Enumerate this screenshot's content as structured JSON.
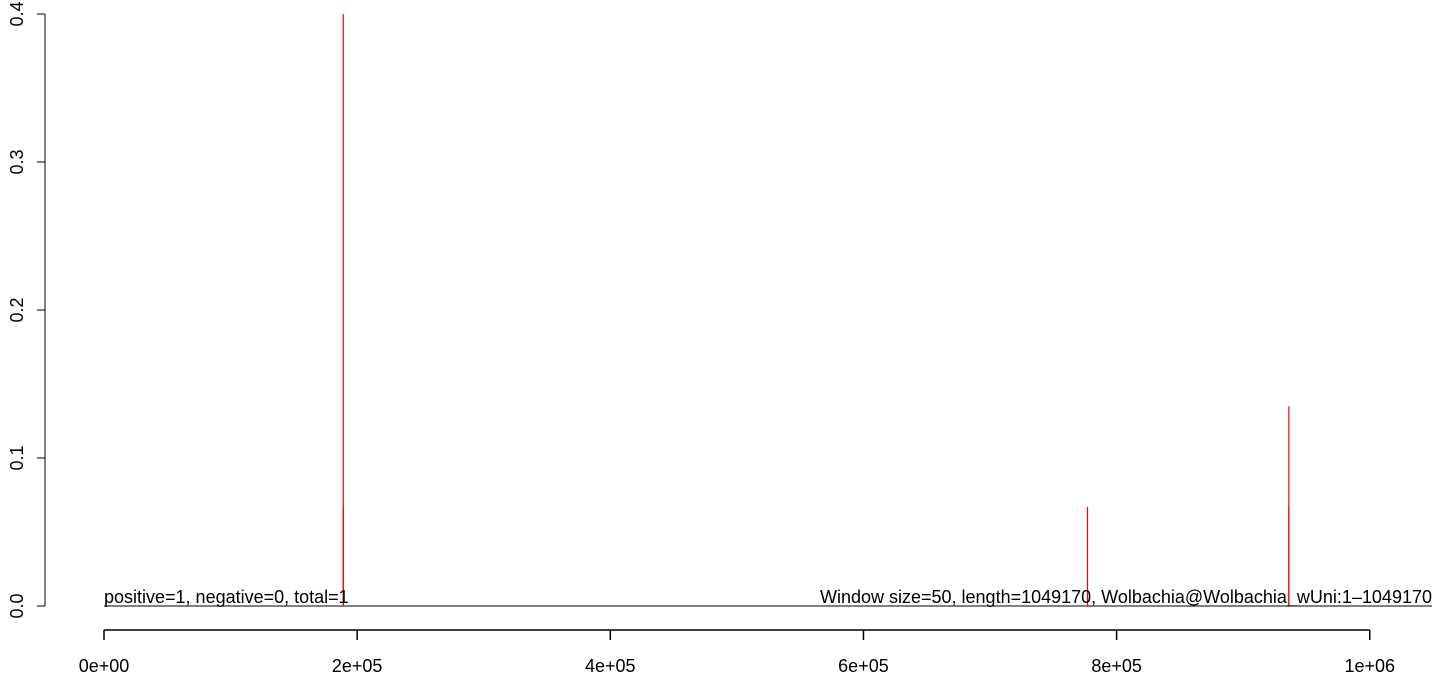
{
  "chart_data": {
    "type": "bar",
    "title": "",
    "xlabel": "",
    "ylabel": "",
    "xlim": [
      0,
      1049170
    ],
    "ylim": [
      0,
      0.4
    ],
    "x_ticks": [
      {
        "value": 0,
        "label": "0e+00"
      },
      {
        "value": 200000,
        "label": "2e+05"
      },
      {
        "value": 400000,
        "label": "4e+05"
      },
      {
        "value": 600000,
        "label": "6e+05"
      },
      {
        "value": 800000,
        "label": "8e+05"
      },
      {
        "value": 1000000,
        "label": "1e+06"
      }
    ],
    "y_ticks": [
      {
        "value": 0.0,
        "label": "0.0"
      },
      {
        "value": 0.1,
        "label": "0.1"
      },
      {
        "value": 0.2,
        "label": "0.2"
      },
      {
        "value": 0.3,
        "label": "0.3"
      },
      {
        "value": 0.4,
        "label": "0.4"
      }
    ],
    "bar_color": "#ff0000",
    "baseline_color": "#000000",
    "grid": false,
    "series": [
      {
        "points": [
          {
            "x": 189000,
            "y": 0.4
          },
          {
            "x": 189100,
            "y": 0.067
          },
          {
            "x": 777000,
            "y": 0.067
          },
          {
            "x": 936000,
            "y": 0.067
          },
          {
            "x": 936100,
            "y": 0.135
          }
        ]
      }
    ],
    "annotations": {
      "left": "positive=1, negative=0, total=1",
      "right": "Window size=50, length=1049170, Wolbachia@Wolbachia_wUni:1–1049170"
    }
  }
}
